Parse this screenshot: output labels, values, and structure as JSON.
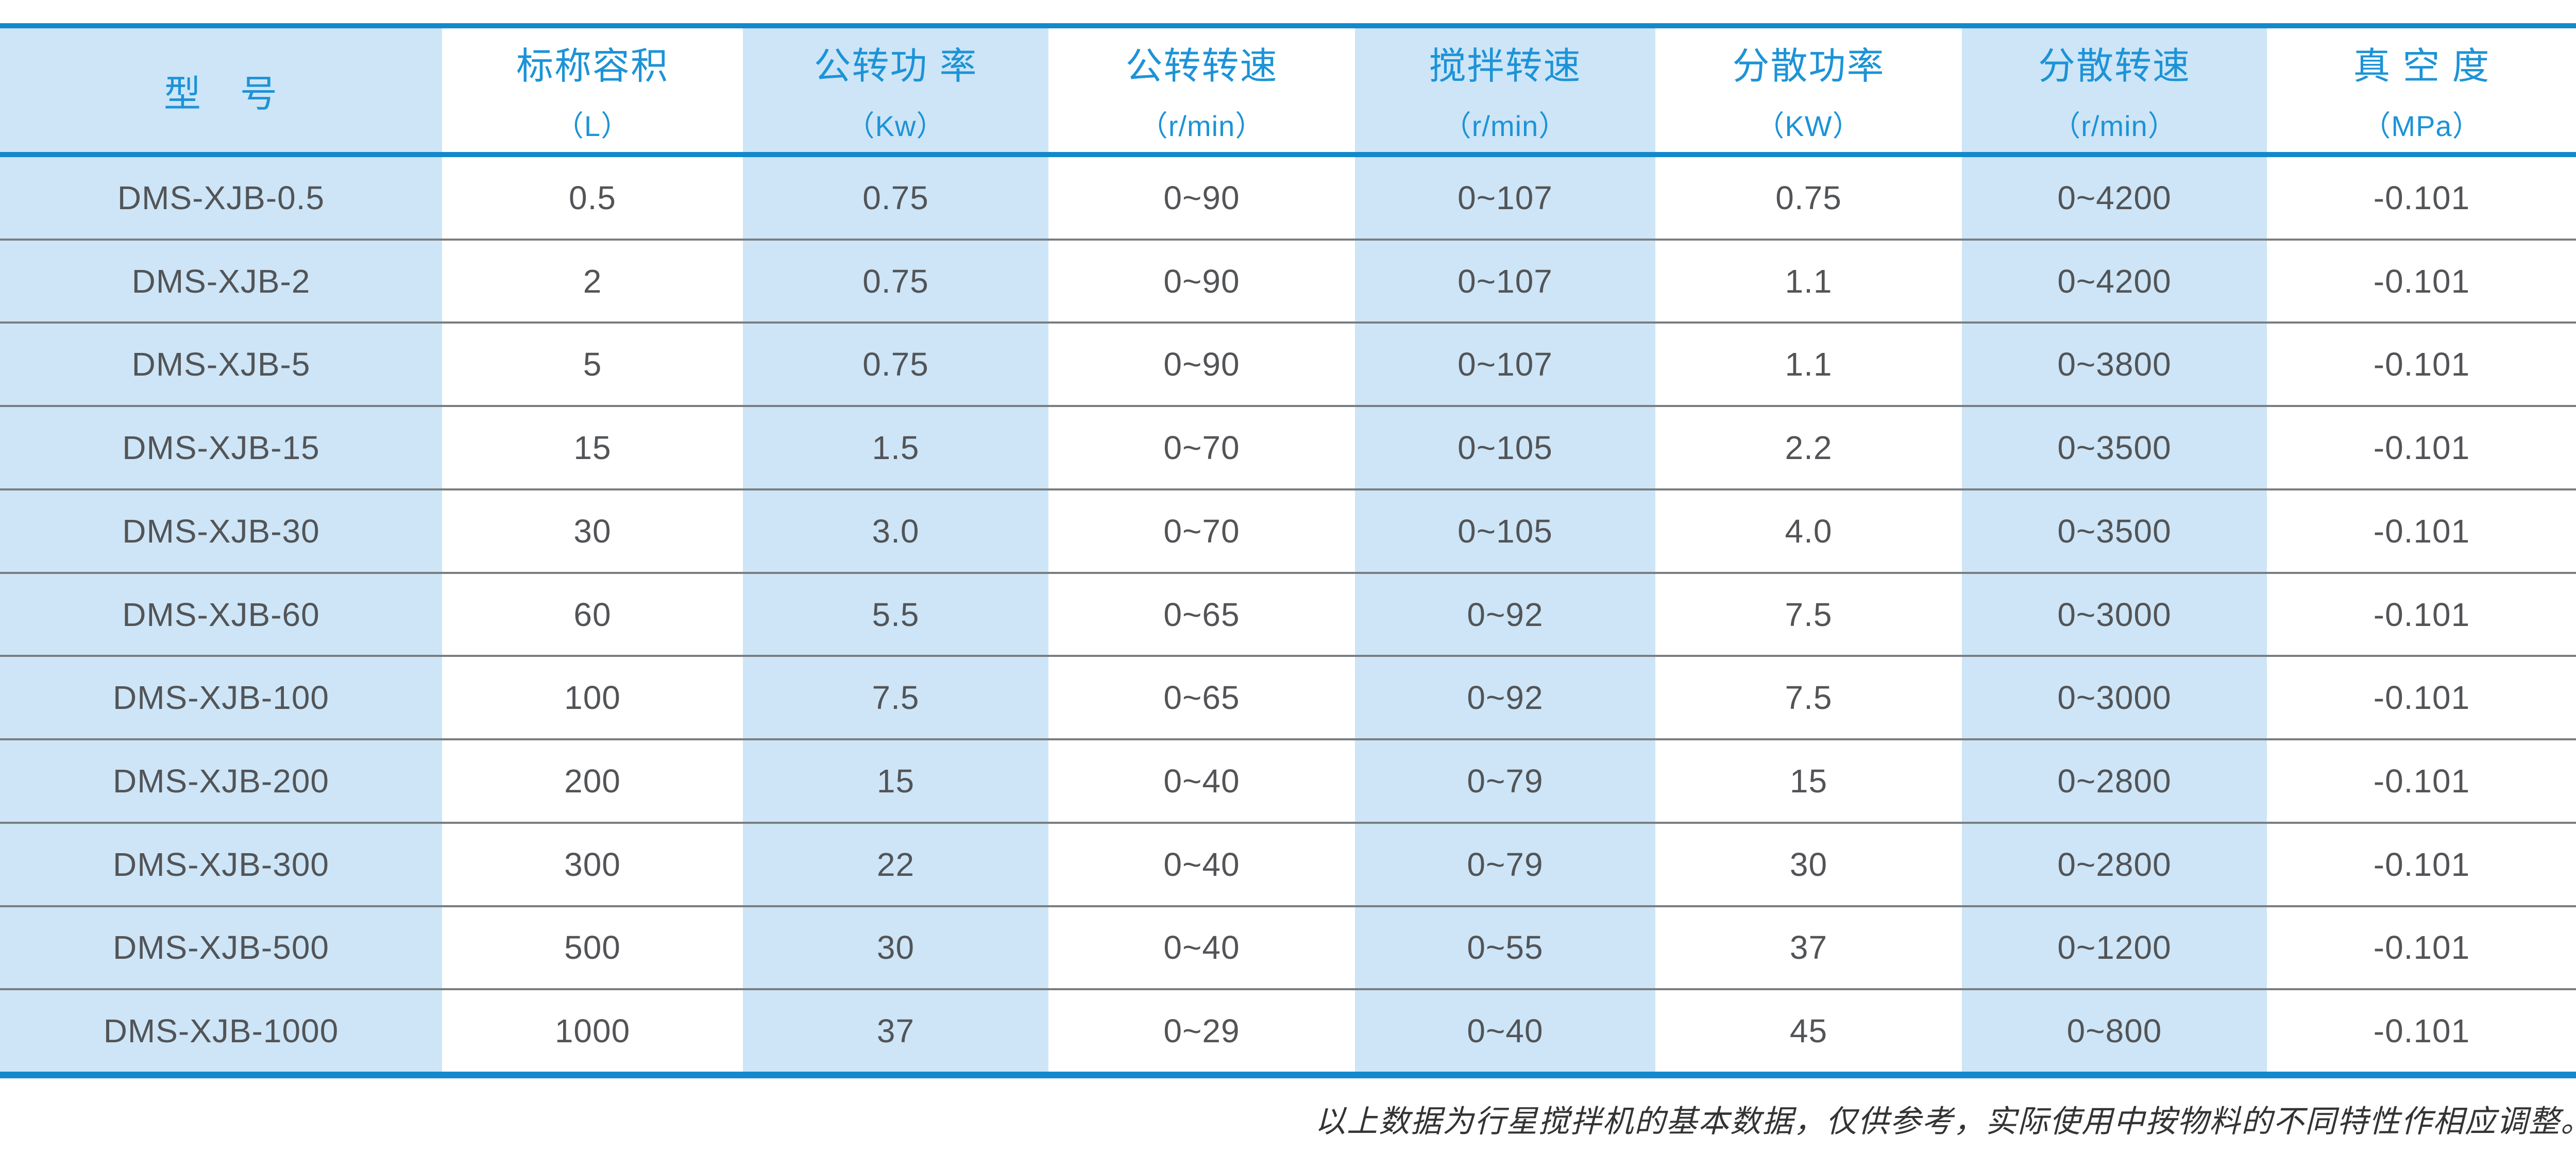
{
  "colors": {
    "rule_blue": "#1389cc",
    "header_text_blue": "#1d93d7",
    "shaded_cell_blue": "#cde5f6",
    "body_text": "#525457",
    "row_divider": "#7a7d80",
    "footnote_text": "#333333"
  },
  "table": {
    "columns": [
      {
        "title": "型　号",
        "unit": "",
        "shaded": true
      },
      {
        "title": "标称容积",
        "unit": "（L）",
        "shaded": false
      },
      {
        "title": "公转功 率",
        "unit": "（Kw）",
        "shaded": true
      },
      {
        "title": "公转转速",
        "unit": "（r/min）",
        "shaded": false
      },
      {
        "title": "搅拌转速",
        "unit": "（r/min）",
        "shaded": true
      },
      {
        "title": "分散功率",
        "unit": "（KW）",
        "shaded": false
      },
      {
        "title": "分散转速",
        "unit": "（r/min）",
        "shaded": true
      },
      {
        "title": "真 空 度",
        "unit": "（MPa）",
        "shaded": false
      }
    ],
    "rows": [
      [
        "DMS-XJB-0.5",
        "0.5",
        "0.75",
        "0~90",
        "0~107",
        "0.75",
        "0~4200",
        "-0.101"
      ],
      [
        "DMS-XJB-2",
        "2",
        "0.75",
        "0~90",
        "0~107",
        "1.1",
        "0~4200",
        "-0.101"
      ],
      [
        "DMS-XJB-5",
        "5",
        "0.75",
        "0~90",
        "0~107",
        "1.1",
        "0~3800",
        "-0.101"
      ],
      [
        "DMS-XJB-15",
        "15",
        "1.5",
        "0~70",
        "0~105",
        "2.2",
        "0~3500",
        "-0.101"
      ],
      [
        "DMS-XJB-30",
        "30",
        "3.0",
        "0~70",
        "0~105",
        "4.0",
        "0~3500",
        "-0.101"
      ],
      [
        "DMS-XJB-60",
        "60",
        "5.5",
        "0~65",
        "0~92",
        "7.5",
        "0~3000",
        "-0.101"
      ],
      [
        "DMS-XJB-100",
        "100",
        "7.5",
        "0~65",
        "0~92",
        "7.5",
        "0~3000",
        "-0.101"
      ],
      [
        "DMS-XJB-200",
        "200",
        "15",
        "0~40",
        "0~79",
        "15",
        "0~2800",
        "-0.101"
      ],
      [
        "DMS-XJB-300",
        "300",
        "22",
        "0~40",
        "0~79",
        "30",
        "0~2800",
        "-0.101"
      ],
      [
        "DMS-XJB-500",
        "500",
        "30",
        "0~40",
        "0~55",
        "37",
        "0~1200",
        "-0.101"
      ],
      [
        "DMS-XJB-1000",
        "1000",
        "37",
        "0~29",
        "0~40",
        "45",
        "0~800",
        "-0.101"
      ]
    ],
    "footnote": "以上数据为行星搅拌机的基本数据，仅供参考，实际使用中按物料的不同特性作相应调整。"
  }
}
